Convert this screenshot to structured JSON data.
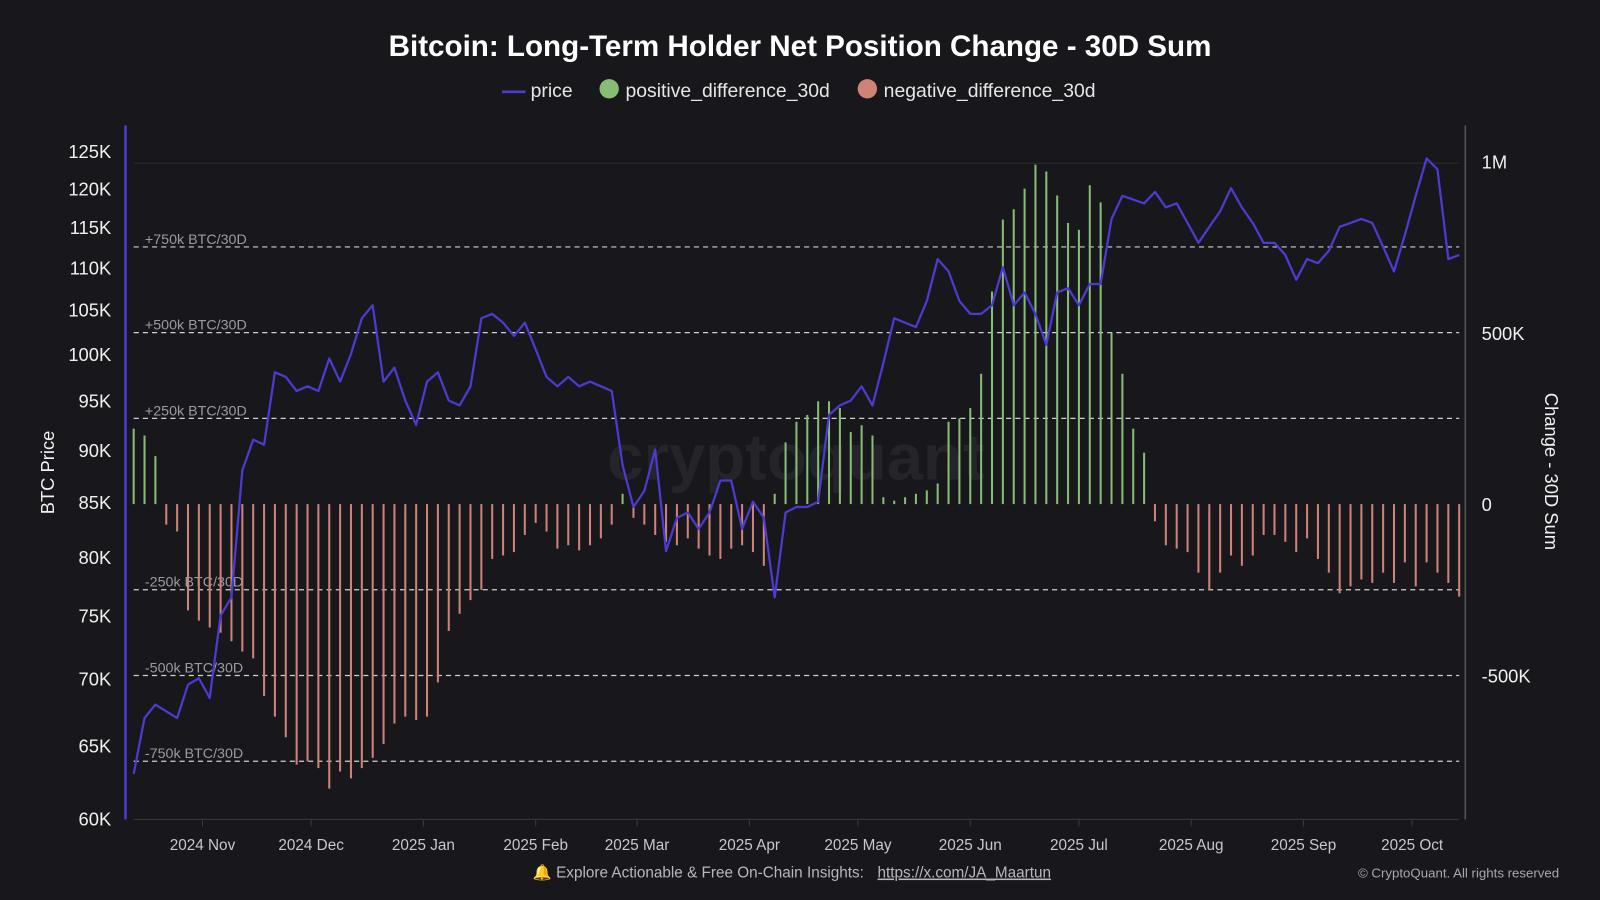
{
  "chart_data": {
    "type": "bar+line",
    "title": "Bitcoin: Long-Term Holder Net Position Change - 30D Sum",
    "legend": {
      "placement": "top-center",
      "entries": [
        "price",
        "positive_difference_30d",
        "negative_difference_30d"
      ]
    },
    "left_axis": {
      "label": "BTC Price",
      "scale": "log",
      "range": [
        60000,
        128000
      ],
      "ticks": [
        "125K",
        "120K",
        "115K",
        "110K",
        "105K",
        "100K",
        "95K",
        "90K",
        "85K",
        "80K",
        "75K",
        "70K",
        "65K",
        "60K"
      ],
      "tick_values": [
        125000,
        120000,
        115000,
        110000,
        105000,
        100000,
        95000,
        90000,
        85000,
        80000,
        75000,
        70000,
        65000,
        60000
      ]
    },
    "right_axis": {
      "label": "Change - 30D Sum",
      "scale": "linear",
      "range": [
        -920000,
        1100000
      ],
      "ticks": [
        "1M",
        "500K",
        "0",
        "-500K"
      ],
      "tick_values": [
        1000000,
        500000,
        0,
        -500000
      ]
    },
    "x_axis": {
      "start": "2024-10-13",
      "end": "2025-10-14",
      "step_days": 3,
      "ticks": [
        "2024 Nov",
        "2024 Dec",
        "2025 Jan",
        "2025 Feb",
        "2025 Mar",
        "2025 Apr",
        "2025 May",
        "2025 Jun",
        "2025 Jul",
        "2025 Aug",
        "2025 Sep",
        "2025 Oct"
      ],
      "tick_dates": [
        "2024-11-01",
        "2024-12-01",
        "2025-01-01",
        "2025-02-01",
        "2025-03-01",
        "2025-04-01",
        "2025-05-01",
        "2025-06-01",
        "2025-07-01",
        "2025-08-01",
        "2025-09-01",
        "2025-10-01"
      ]
    },
    "reference_lines": [
      {
        "label": "+750k BTC/30D",
        "value": 750000
      },
      {
        "label": "+500k BTC/30D",
        "value": 500000
      },
      {
        "label": "+250k BTC/30D",
        "value": 250000
      },
      {
        "label": "-250k BTC/30D",
        "value": -250000
      },
      {
        "label": "-500k BTC/30D",
        "value": -500000
      },
      {
        "label": "-750k BTC/30D",
        "value": -750000
      }
    ],
    "grid": false,
    "series": [
      {
        "name": "price",
        "axis": "left",
        "type": "line",
        "color": "#4b3bd0",
        "values_k": [
          63,
          67,
          68,
          67.5,
          67,
          69.5,
          70,
          68.5,
          75,
          76.5,
          88,
          91,
          90.5,
          98,
          97.5,
          96,
          96.5,
          96,
          99.5,
          97,
          100,
          104,
          105.5,
          97,
          98.5,
          95,
          92.5,
          97,
          98,
          95,
          94.5,
          96.5,
          104,
          104.5,
          103.5,
          102,
          103.5,
          100.5,
          97.5,
          96.5,
          97.5,
          96.5,
          97,
          96.5,
          96,
          88.5,
          84.5,
          86,
          90,
          80.5,
          83.5,
          84,
          82.5,
          84,
          87,
          87,
          82.5,
          85,
          83.5,
          76.5,
          84,
          84.5,
          84.5,
          85,
          93.5,
          94.5,
          95,
          96.5,
          94.5,
          99,
          104,
          103.5,
          103,
          106,
          111,
          109.5,
          106,
          104.5,
          104.5,
          105.5,
          110,
          105.5,
          107,
          104.5,
          101,
          107,
          107.5,
          105.5,
          108,
          108,
          116,
          119,
          118.5,
          118,
          119.5,
          117.5,
          118,
          115.5,
          113,
          115,
          117,
          120,
          117.5,
          115.5,
          113,
          113,
          111.5,
          108.5,
          111,
          110.5,
          112,
          115,
          115.5,
          116,
          115.5,
          112.5,
          109.5,
          114,
          119,
          124,
          122.5,
          111,
          111.5
        ]
      },
      {
        "name": "positive_difference_30d / negative_difference_30d",
        "axis": "right",
        "type": "bar",
        "positive_color": "#86bd74",
        "negative_color": "#cf8276",
        "values_k": [
          220,
          200,
          140,
          -60,
          -80,
          -310,
          -340,
          -360,
          -375,
          -400,
          -430,
          -450,
          -560,
          -620,
          -680,
          -760,
          -750,
          -770,
          -830,
          -780,
          -800,
          -770,
          -740,
          -700,
          -640,
          -620,
          -630,
          -620,
          -520,
          -370,
          -320,
          -280,
          -250,
          -160,
          -150,
          -140,
          -90,
          -55,
          -80,
          -130,
          -120,
          -135,
          -120,
          -100,
          -60,
          30,
          -40,
          -60,
          -90,
          -110,
          -120,
          -100,
          -130,
          -150,
          -160,
          -130,
          -120,
          -140,
          -180,
          30,
          180,
          240,
          260,
          300,
          300,
          280,
          210,
          230,
          200,
          20,
          10,
          20,
          30,
          40,
          60,
          240,
          250,
          280,
          380,
          620,
          830,
          860,
          920,
          990,
          970,
          900,
          820,
          800,
          930,
          880,
          500,
          380,
          220,
          150,
          -50,
          -120,
          -130,
          -140,
          -200,
          -250,
          -200,
          -150,
          -180,
          -150,
          -90,
          -90,
          -110,
          -140,
          -100,
          -160,
          -200,
          -260,
          -240,
          -220,
          -230,
          -200,
          -230,
          -170,
          -240,
          -170,
          -200,
          -230,
          -270
        ]
      }
    ]
  },
  "footer": {
    "bell_icon": "bell-icon",
    "text": "Explore Actionable & Free On-Chain Insights:",
    "link": "https://x.com/JA_Maartun",
    "copyright": "© CryptoQuant. All rights reserved"
  },
  "watermark": "cryptoquant",
  "colors": {
    "background": "#18181c",
    "price": "#4b3bd0",
    "positive": "#86bd74",
    "negative": "#cf8276"
  }
}
